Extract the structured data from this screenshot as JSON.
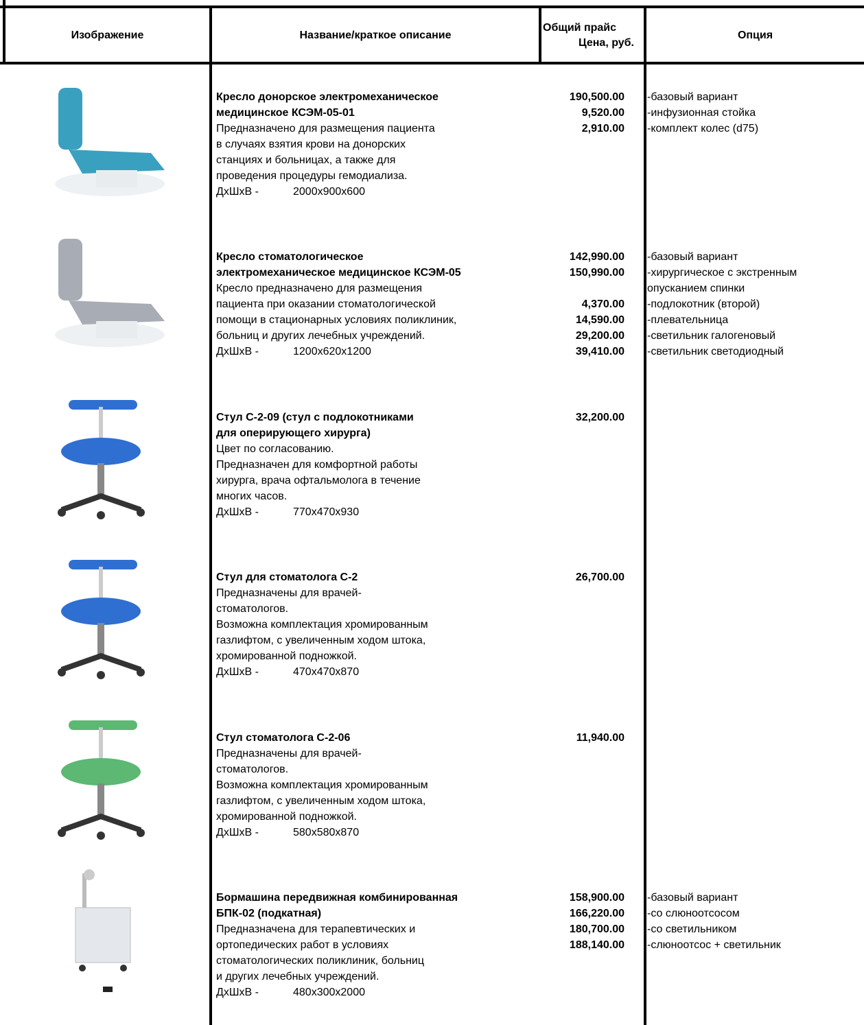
{
  "header": {
    "image": "Изображение",
    "name": "Название/краткое описание",
    "price": [
      "Общий прайс",
      "Цена, руб."
    ],
    "option": "Опция"
  },
  "rows": [
    {
      "title": [
        "Кресло донорское электромеханическое",
        "медицинское КСЭМ-05-01"
      ],
      "description": [
        "Предназначено для размещения пациента",
        "в случаях взятия крови на донорских",
        "станциях и больницах, а также для",
        "проведения процедуры гемодиализа."
      ],
      "dims_label": "ДхШхВ -",
      "dims": "2000х900х600",
      "items": [
        {
          "price": "190,500.00",
          "option": "-базовый вариант"
        },
        {
          "price": "9,520.00",
          "option": "-инфузионная стойка"
        },
        {
          "price": "2,910.00",
          "option": "-комплект колес (d75)"
        }
      ]
    },
    {
      "title": [
        "Кресло стоматологическое",
        "электромеханическое медицинское КСЭМ-05"
      ],
      "description": [
        "Кресло предназначено для размещения",
        "пациента при оказании стоматологической",
        "помощи в стационарных условиях поликлиник,",
        "больниц и других лечебных учреждений."
      ],
      "dims_label": "ДхШхВ -",
      "dims": "1200х620х1200",
      "items": [
        {
          "price": "142,990.00",
          "option": "-базовый вариант"
        },
        {
          "price": "150,990.00",
          "option": "-хирургическое с экстренным опусканием спинки"
        },
        {
          "price": "4,370.00",
          "option": "-подлокотник (второй)"
        },
        {
          "price": "14,590.00",
          "option": "-плевательница"
        },
        {
          "price": "29,200.00",
          "option": "-светильник галогеновый"
        },
        {
          "price": "39,410.00",
          "option": "-светильник светодиодный"
        }
      ]
    },
    {
      "title": [
        "Стул С-2-09 (стул с подлокотниками",
        "для оперирующего хирурга)"
      ],
      "description": [
        "Цвет по согласованию.",
        "Предназначен для комфортной работы",
        "хирурга, врача офтальмолога в течение",
        "многих часов."
      ],
      "dims_label": "ДхШхВ -",
      "dims": "770х470х930",
      "items": [
        {
          "price": "32,200.00"
        }
      ]
    },
    {
      "title": [
        "Стул для стоматолога С-2"
      ],
      "description": [
        "Предназначены для врачей-",
        "стоматологов.",
        "Возможна комплектация хромированным",
        "газлифтом, с увеличенным ходом штока,",
        "хромированной подножкой."
      ],
      "dims_label": "ДхШхВ -",
      "dims": "470х470х870",
      "items": [
        {
          "price": "26,700.00"
        }
      ]
    },
    {
      "title": [
        "Стул стоматолога С-2-06"
      ],
      "description": [
        "Предназначены для врачей-",
        "стоматологов.",
        "Возможна комплектация хромированным",
        "газлифтом, с увеличенным ходом штока,",
        "хромированной подножкой."
      ],
      "dims_label": "ДхШхВ -",
      "dims": "580х580х870",
      "items": [
        {
          "price": "11,940.00"
        }
      ]
    },
    {
      "title": [
        "Бормашина передвижная комбинированная",
        "БПК-02 (подкатная)"
      ],
      "description": [
        "Предназначена для терапевтических и",
        "ортопедических работ в условиях",
        "стоматологических поликлиник, больниц",
        "и других лечебных учреждений."
      ],
      "dims_label": "ДхШхВ -",
      "dims": "480х300х2000",
      "items": [
        {
          "price": "158,900.00",
          "option": "-базовый вариант"
        },
        {
          "price": "166,220.00",
          "option": "-со слюноотсосом"
        },
        {
          "price": "180,700.00",
          "option": "-со светильником"
        },
        {
          "price": "188,140.00",
          "option": "-слюноотсос + светильник"
        }
      ]
    }
  ]
}
